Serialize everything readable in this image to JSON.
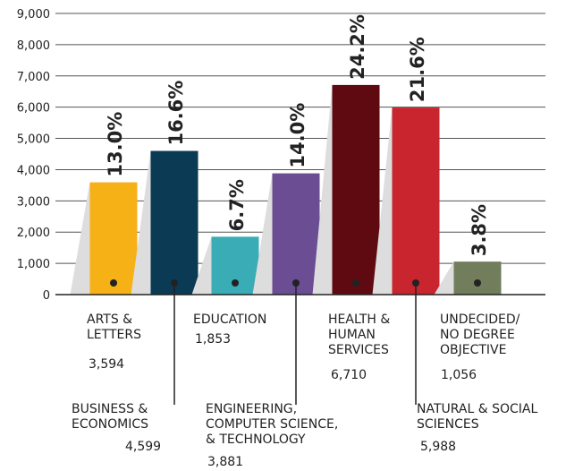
{
  "chart_data": {
    "type": "bar",
    "categories": [
      "ARTS &\nLETTERS",
      "BUSINESS &\nECONOMICS",
      "EDUCATION",
      "ENGINEERING,\nCOMPUTER SCIENCE,\n& TECHNOLOGY",
      "HEALTH &\nHUMAN\nSERVICES",
      "NATURAL & SOCIAL\nSCIENCES",
      "UNDECIDED/\nNO DEGREE\nOBJECTIVE"
    ],
    "values": [
      3594,
      4599,
      1853,
      3881,
      6710,
      5988,
      1056
    ],
    "value_labels": [
      "3,594",
      "4,599",
      "1,853",
      "3,881",
      "6,710",
      "5,988",
      "1,056"
    ],
    "shares": [
      13.0,
      16.6,
      6.7,
      14.0,
      24.2,
      21.6,
      3.8
    ],
    "share_labels": [
      "13.0%",
      "16.6%",
      "6.7%",
      "14.0%",
      "24.2%",
      "21.6%",
      "3.8%"
    ],
    "colors": [
      "#f6b117",
      "#0b3a54",
      "#3aacb5",
      "#6b4d94",
      "#5e0a10",
      "#c9252f",
      "#717d5b"
    ],
    "ylim": [
      0,
      9000
    ],
    "yticks": [
      0,
      {
        "value": 1000,
        "label": "1,000"
      },
      {
        "value": 2000,
        "label": "2,000"
      },
      {
        "value": 3000,
        "label": "3,000"
      },
      {
        "value": 4000,
        "label": "4,000"
      },
      {
        "value": 5000,
        "label": "5,000"
      },
      {
        "value": 6000,
        "label": "6,000"
      },
      {
        "value": 7000,
        "label": "7,000"
      },
      {
        "value": 8000,
        "label": "8,000"
      },
      {
        "value": 9000,
        "label": "9,000"
      }
    ],
    "grid": true
  }
}
